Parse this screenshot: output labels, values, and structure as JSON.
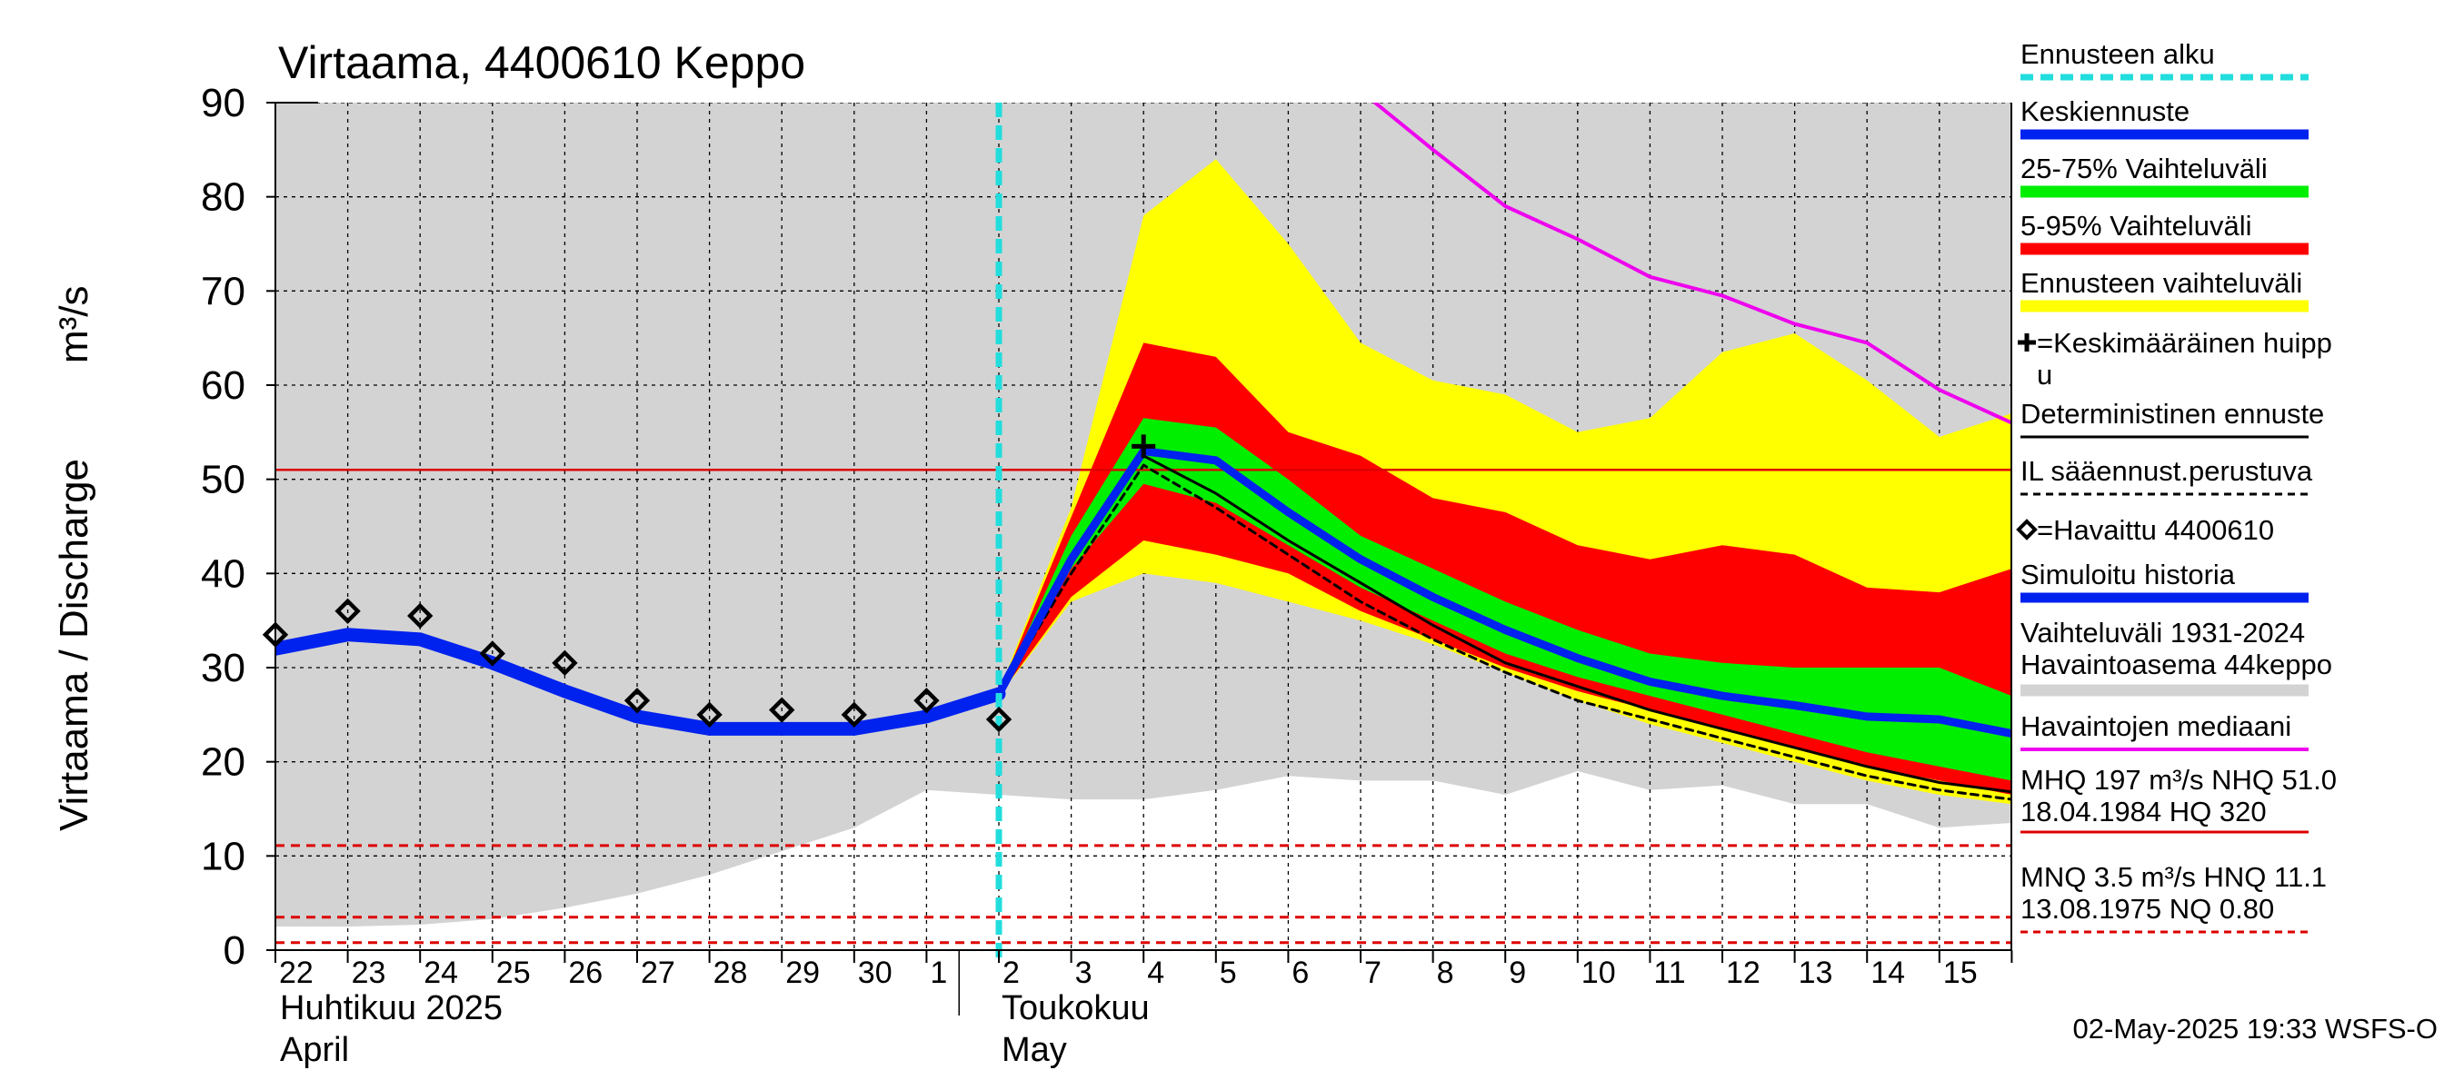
{
  "chart_data": {
    "type": "area",
    "title": "Virtaama, 4400610 Keppo",
    "ylabel": "Virtaama / Discharge",
    "yunit": "m³/s",
    "ylim": [
      0,
      90
    ],
    "yticks": [
      "0",
      "10",
      "20",
      "30",
      "40",
      "50",
      "60",
      "70",
      "80",
      "90"
    ],
    "x_day_labels": [
      "22",
      "23",
      "24",
      "25",
      "26",
      "27",
      "28",
      "29",
      "30",
      "1",
      "2",
      "3",
      "4",
      "5",
      "6",
      "7",
      "8",
      "9",
      "10",
      "11",
      "12",
      "13",
      "14",
      "15"
    ],
    "month_labels": {
      "april_fi": "Huhtikuu  2025",
      "april_en": "April",
      "may_fi": "Toukokuu",
      "may_en": "May"
    },
    "forecast_start_day": 10,
    "history_band": {
      "x": [
        0,
        1,
        2,
        3,
        4,
        5,
        6,
        7,
        8,
        9,
        10,
        11,
        12,
        13,
        14,
        15,
        16,
        17,
        18,
        19,
        20,
        21,
        22,
        23,
        24
      ],
      "low": [
        2.5,
        2.5,
        2.7,
        3.3,
        4.5,
        6.0,
        8.0,
        10.5,
        13.0,
        17.0,
        16.5,
        16.0,
        16.0,
        17.0,
        18.5,
        18.0,
        18.0,
        16.5,
        19.0,
        17.0,
        17.5,
        15.5,
        15.5,
        13.0,
        13.5
      ],
      "high": [
        90,
        90,
        90,
        90,
        90,
        90,
        90,
        90,
        90,
        90,
        90,
        90,
        90,
        90,
        90,
        90,
        90,
        90,
        90,
        90,
        90,
        90,
        90,
        90,
        90
      ]
    },
    "forecast_range": {
      "x": [
        10,
        11,
        12,
        13,
        14,
        15,
        16,
        17,
        18,
        19,
        20,
        21,
        22,
        23,
        24
      ],
      "low": [
        27.0,
        37.0,
        40.0,
        39.0,
        37.0,
        35.0,
        32.5,
        29.5,
        26.5,
        24.0,
        22.0,
        20.0,
        18.0,
        16.5,
        15.5
      ],
      "high": [
        27.5,
        47.0,
        78.0,
        84.0,
        75.0,
        64.5,
        60.5,
        59.0,
        55.0,
        56.5,
        63.5,
        65.5,
        60.5,
        54.5,
        57.0
      ]
    },
    "band_5_95": {
      "x": [
        10,
        11,
        12,
        13,
        14,
        15,
        16,
        17,
        18,
        19,
        20,
        21,
        22,
        23,
        24
      ],
      "low": [
        27.0,
        37.5,
        43.5,
        42.0,
        40.0,
        36.0,
        33.0,
        30.0,
        27.5,
        25.5,
        23.5,
        21.5,
        19.5,
        18.0,
        16.5
      ],
      "high": [
        27.3,
        46.0,
        64.5,
        63.0,
        55.0,
        52.5,
        48.0,
        46.5,
        43.0,
        41.5,
        43.0,
        42.0,
        38.5,
        38.0,
        40.5
      ]
    },
    "band_25_75": {
      "x": [
        10,
        11,
        12,
        13,
        14,
        15,
        16,
        17,
        18,
        19,
        20,
        21,
        22,
        23,
        24
      ],
      "low": [
        27.1,
        40.5,
        49.5,
        47.5,
        43.0,
        38.5,
        35.0,
        31.5,
        29.0,
        27.0,
        25.0,
        23.0,
        21.0,
        19.5,
        18.0
      ],
      "high": [
        27.2,
        44.0,
        56.5,
        55.5,
        50.0,
        44.0,
        40.5,
        37.0,
        34.0,
        31.5,
        30.5,
        30.0,
        30.0,
        30.0,
        27.0
      ]
    },
    "series": [
      {
        "name": "Keskiennuste",
        "color": "#0022ee",
        "x": [
          10,
          11,
          12,
          13,
          14,
          15,
          16,
          17,
          18,
          19,
          20,
          21,
          22,
          23,
          24
        ],
        "values": [
          27.2,
          41.5,
          53.0,
          52.0,
          46.5,
          41.5,
          37.5,
          34.0,
          31.0,
          28.5,
          27.0,
          26.0,
          24.8,
          24.5,
          23.0
        ]
      },
      {
        "name": "Simuloitu historia",
        "color": "#0022ee",
        "x": [
          0,
          1,
          2,
          3,
          4,
          5,
          6,
          7,
          8,
          9,
          10
        ],
        "values": [
          32.0,
          33.5,
          33.0,
          30.5,
          27.5,
          24.8,
          23.5,
          23.5,
          23.5,
          24.8,
          27.2
        ]
      },
      {
        "name": "Deterministinen ennuste",
        "color": "#000000",
        "x": [
          10,
          11,
          12,
          13,
          14,
          15,
          16,
          17,
          18,
          19,
          20,
          21,
          22,
          23,
          24
        ],
        "values": [
          27.2,
          41.0,
          52.5,
          48.5,
          43.5,
          39.0,
          34.5,
          30.5,
          28.0,
          25.5,
          23.5,
          21.5,
          19.5,
          17.8,
          16.8
        ]
      },
      {
        "name": "IL sääennust.perustuva",
        "color": "#000000",
        "dashed": true,
        "x": [
          10,
          11,
          12,
          13,
          14,
          15,
          16,
          17,
          18,
          19,
          20,
          21,
          22,
          23,
          24
        ],
        "values": [
          27.2,
          40.0,
          51.5,
          47.0,
          42.0,
          37.0,
          33.0,
          29.5,
          26.5,
          24.5,
          22.5,
          20.5,
          18.5,
          17.0,
          16.0
        ]
      },
      {
        "name": "Havaintojen mediaani",
        "color": "#ee00ee",
        "x": [
          15.2,
          16,
          17,
          18,
          19,
          20,
          21,
          22,
          23,
          24
        ],
        "values": [
          90.0,
          85.0,
          79.0,
          75.5,
          71.5,
          69.5,
          66.5,
          64.5,
          59.5,
          56.0
        ]
      }
    ],
    "observed": {
      "name": "Havaittu 4400610",
      "x": [
        0,
        1,
        2,
        3,
        4,
        5,
        6,
        7,
        8,
        9,
        10
      ],
      "values": [
        33.5,
        36.0,
        35.5,
        31.5,
        30.5,
        26.5,
        25.0,
        25.5,
        25.0,
        26.5,
        24.5
      ]
    },
    "mean_peak": {
      "x": 12,
      "y": 53.5
    },
    "reference_lines": [
      {
        "label": "NHQ",
        "value": 51.0,
        "color": "#dd0000",
        "dashed": false
      },
      {
        "label": "HNQ",
        "value": 11.1,
        "color": "#dd0000",
        "dashed": true
      },
      {
        "label": "MNQ",
        "value": 3.5,
        "color": "#dd0000",
        "dashed": true
      },
      {
        "label": "NQ",
        "value": 0.8,
        "color": "#dd0000",
        "dashed": true
      }
    ],
    "colors": {
      "history_band": "#d3d3d3",
      "forecast_range": "#ffff00",
      "band_5_95": "#ff0000",
      "band_25_75": "#00ee00",
      "forecast_start": "#22dddd",
      "median": "#ee00ee",
      "ref": "#dd0000"
    },
    "legend": [
      {
        "text": "Ennusteen alku",
        "style": "cyan-dash"
      },
      {
        "text": "Keskiennuste",
        "style": "blue"
      },
      {
        "text": "25-75% Vaihteluväli",
        "style": "green"
      },
      {
        "text": "5-95% Vaihteluväli",
        "style": "red"
      },
      {
        "text": "Ennusteen vaihteluväli",
        "style": "yellow"
      },
      {
        "text": "=Keskimääräinen huipp",
        "text2": "u",
        "style": "plus"
      },
      {
        "text": "Deterministinen ennuste",
        "style": "black"
      },
      {
        "text": "IL sääennust.perustuva",
        "style": "black-dash"
      },
      {
        "text": "=Havaittu 4400610",
        "style": "diamond"
      },
      {
        "text": "Simuloitu historia",
        "style": "blue"
      },
      {
        "text": "Vaihteluväli 1931-2024",
        "text2": " Havaintoasema 44keppo",
        "style": "grey"
      },
      {
        "text": "Havaintojen mediaani",
        "style": "magenta"
      },
      {
        "text": "MHQ  197 m³/s NHQ 51.0",
        "text2": "18.04.1984 HQ  320",
        "style": "red-line"
      },
      {
        "text": "MNQ  3.5 m³/s HNQ 11.1",
        "text2": "13.08.1975 NQ 0.80",
        "style": "red-dash"
      }
    ],
    "timestamp": "02-May-2025 19:33 WSFS-O"
  }
}
